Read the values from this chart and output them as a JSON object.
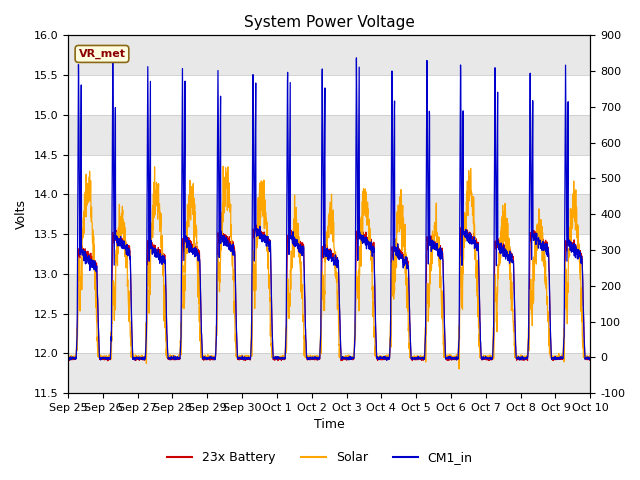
{
  "title": "System Power Voltage",
  "xlabel": "Time",
  "ylabel": "Volts",
  "ylim_left": [
    11.5,
    16.0
  ],
  "ylim_right": [
    -100,
    900
  ],
  "yticks_left": [
    11.5,
    12.0,
    12.5,
    13.0,
    13.5,
    14.0,
    14.5,
    15.0,
    15.5,
    16.0
  ],
  "yticks_right": [
    -100,
    0,
    100,
    200,
    300,
    400,
    500,
    600,
    700,
    800,
    900
  ],
  "xtick_labels": [
    "Sep 25",
    "Sep 26",
    "Sep 27",
    "Sep 28",
    "Sep 29",
    "Sep 30",
    "Oct 1",
    "Oct 2",
    "Oct 3",
    "Oct 4",
    "Oct 5",
    "Oct 6",
    "Oct 7",
    "Oct 8",
    "Oct 9",
    "Oct 10"
  ],
  "n_days": 15,
  "battery_color": "#CC0000",
  "solar_color": "#FFA500",
  "cm1_color": "#0000CC",
  "legend_labels": [
    "23x Battery",
    "Solar",
    "CM1_in"
  ],
  "annotation_text": "VR_met",
  "grid_color": "#cccccc",
  "bg_color": "#ffffff",
  "title_fontsize": 11,
  "label_fontsize": 9,
  "tick_fontsize": 8,
  "band_colors": [
    "#e8e8e8",
    "#ffffff"
  ]
}
